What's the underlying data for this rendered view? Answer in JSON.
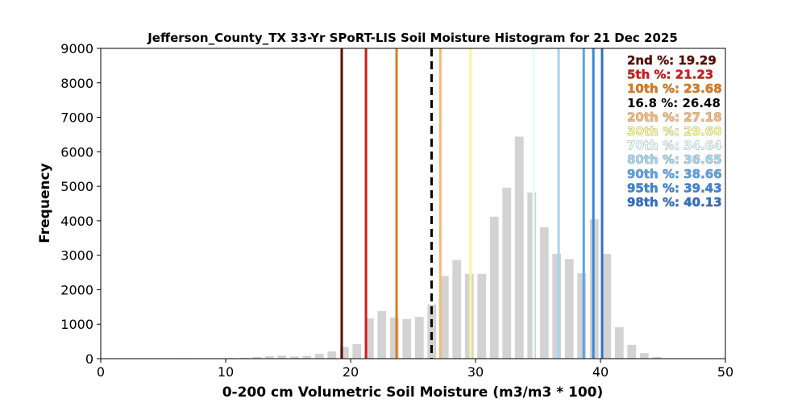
{
  "chart_data": {
    "type": "bar",
    "title": "Jefferson_County_TX 33-Yr SPoRT-LIS Soil Moisture Histogram for 21 Dec 2025",
    "xlabel": "0-200 cm Volumetric Soil Moisture (m3/m3 * 100)",
    "ylabel": "Frequency",
    "xlim": [
      0,
      50
    ],
    "ylim": [
      0,
      9000
    ],
    "xticks": [
      "0",
      "10",
      "20",
      "30",
      "40",
      "50"
    ],
    "yticks": [
      "0",
      "1000",
      "2000",
      "3000",
      "4000",
      "5000",
      "6000",
      "7000",
      "8000",
      "9000"
    ],
    "bar_color": "#d3d3d3",
    "bins": [
      {
        "x": 6.5,
        "value": 15
      },
      {
        "x": 7.5,
        "value": 5
      },
      {
        "x": 8.5,
        "value": 10
      },
      {
        "x": 9.5,
        "value": 10
      },
      {
        "x": 10.5,
        "value": 20
      },
      {
        "x": 11.5,
        "value": 25
      },
      {
        "x": 12.5,
        "value": 50
      },
      {
        "x": 13.5,
        "value": 70
      },
      {
        "x": 14.5,
        "value": 90
      },
      {
        "x": 15.5,
        "value": 60
      },
      {
        "x": 16.5,
        "value": 80
      },
      {
        "x": 17.5,
        "value": 140
      },
      {
        "x": 18.5,
        "value": 210
      },
      {
        "x": 19.5,
        "value": 340
      },
      {
        "x": 20.5,
        "value": 420
      },
      {
        "x": 21.5,
        "value": 1170
      },
      {
        "x": 22.5,
        "value": 1380
      },
      {
        "x": 23.5,
        "value": 1190
      },
      {
        "x": 24.5,
        "value": 1150
      },
      {
        "x": 25.5,
        "value": 1210
      },
      {
        "x": 26.5,
        "value": 1570
      },
      {
        "x": 27.5,
        "value": 2400
      },
      {
        "x": 28.5,
        "value": 2860
      },
      {
        "x": 29.5,
        "value": 2460
      },
      {
        "x": 30.5,
        "value": 2460
      },
      {
        "x": 31.5,
        "value": 4120
      },
      {
        "x": 32.5,
        "value": 4960
      },
      {
        "x": 33.5,
        "value": 6440
      },
      {
        "x": 34.5,
        "value": 4820
      },
      {
        "x": 35.5,
        "value": 3810
      },
      {
        "x": 36.5,
        "value": 3040
      },
      {
        "x": 37.5,
        "value": 2890
      },
      {
        "x": 38.5,
        "value": 2480
      },
      {
        "x": 39.5,
        "value": 4040
      },
      {
        "x": 40.5,
        "value": 3040
      },
      {
        "x": 41.5,
        "value": 910
      },
      {
        "x": 42.5,
        "value": 400
      },
      {
        "x": 43.5,
        "value": 160
      },
      {
        "x": 44.5,
        "value": 50
      }
    ],
    "percentiles": [
      {
        "label": "2nd %: 19.29",
        "value": 19.29,
        "color": "#5c0d00",
        "dashed": false
      },
      {
        "label": "5th %: 21.23",
        "value": 21.23,
        "color": "#d01b1b",
        "dashed": false
      },
      {
        "label": "10th %: 23.68",
        "value": 23.68,
        "color": "#e07b1a",
        "dashed": false
      },
      {
        "label": "16.8 %: 26.48",
        "value": 26.48,
        "color": "#000000",
        "dashed": true
      },
      {
        "label": "20th %: 27.18",
        "value": 27.18,
        "color": "#f5b87a",
        "dashed": false
      },
      {
        "label": "30th %: 29.60",
        "value": 29.6,
        "color": "#f7f79a",
        "dashed": false
      },
      {
        "label": "70th %: 34.64",
        "value": 34.64,
        "color": "#e6fbfb",
        "dashed": false
      },
      {
        "label": "80th %: 36.65",
        "value": 36.65,
        "color": "#a6d4ef",
        "dashed": false
      },
      {
        "label": "90th %: 38.66",
        "value": 38.66,
        "color": "#5aa3e6",
        "dashed": false
      },
      {
        "label": "95th %: 39.43",
        "value": 39.43,
        "color": "#3a86d8",
        "dashed": false
      },
      {
        "label": "98th %: 40.13",
        "value": 40.13,
        "color": "#2f6fc7",
        "dashed": false
      }
    ],
    "legend_position": "top-right",
    "grid": false
  }
}
